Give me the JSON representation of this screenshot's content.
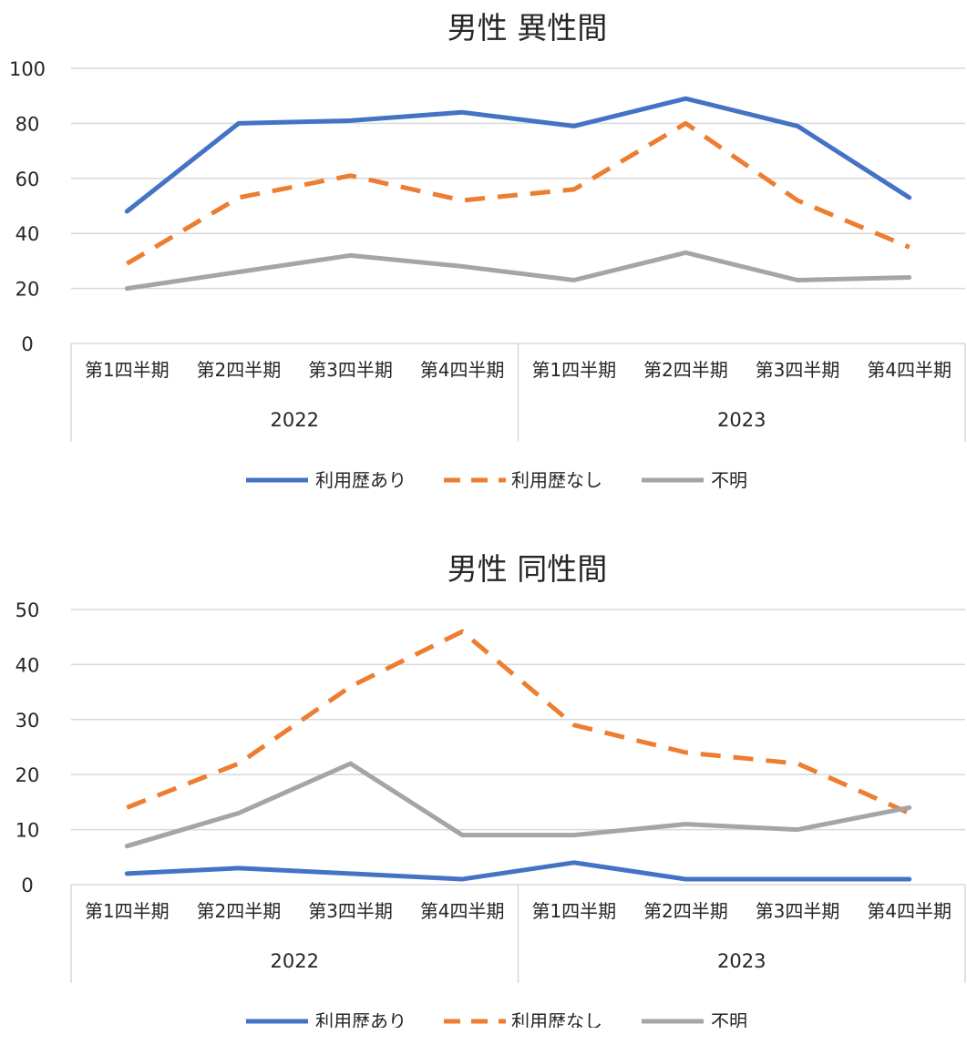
{
  "chart_data": [
    {
      "type": "line",
      "title": "男性 異性間",
      "categories": [
        "第1四半期",
        "第2四半期",
        "第3四半期",
        "第4四半期",
        "第1四半期",
        "第2四半期",
        "第3四半期",
        "第4四半期"
      ],
      "groups": [
        {
          "label": "2022",
          "span": 4
        },
        {
          "label": "2023",
          "span": 4
        }
      ],
      "ylim": [
        0,
        100
      ],
      "yticks": [
        0,
        20,
        40,
        60,
        80,
        100
      ],
      "grid": true,
      "legend_position": "bottom",
      "series": [
        {
          "name": "利用歴あり",
          "color": "#4472C4",
          "dash": "solid",
          "values": [
            48,
            80,
            81,
            84,
            79,
            89,
            79,
            53
          ]
        },
        {
          "name": "利用歴なし",
          "color": "#ED7D31",
          "dash": "dashed",
          "values": [
            29,
            53,
            61,
            52,
            56,
            80,
            52,
            35
          ]
        },
        {
          "name": "不明",
          "color": "#A5A5A5",
          "dash": "solid",
          "values": [
            20,
            26,
            32,
            28,
            23,
            33,
            23,
            24
          ]
        }
      ]
    },
    {
      "type": "line",
      "title": "男性 同性間",
      "categories": [
        "第1四半期",
        "第2四半期",
        "第3四半期",
        "第4四半期",
        "第1四半期",
        "第2四半期",
        "第3四半期",
        "第4四半期"
      ],
      "groups": [
        {
          "label": "2022",
          "span": 4
        },
        {
          "label": "2023",
          "span": 4
        }
      ],
      "ylim": [
        0,
        50
      ],
      "yticks": [
        0,
        10,
        20,
        30,
        40,
        50
      ],
      "grid": true,
      "legend_position": "bottom",
      "series": [
        {
          "name": "利用歴あり",
          "color": "#4472C4",
          "dash": "solid",
          "values": [
            2,
            3,
            2,
            1,
            4,
            1,
            1,
            1
          ]
        },
        {
          "name": "利用歴なし",
          "color": "#ED7D31",
          "dash": "dashed",
          "values": [
            14,
            22,
            36,
            46,
            29,
            24,
            22,
            13
          ]
        },
        {
          "name": "不明",
          "color": "#A5A5A5",
          "dash": "solid",
          "values": [
            7,
            13,
            22,
            9,
            9,
            11,
            10,
            14
          ]
        }
      ]
    }
  ]
}
